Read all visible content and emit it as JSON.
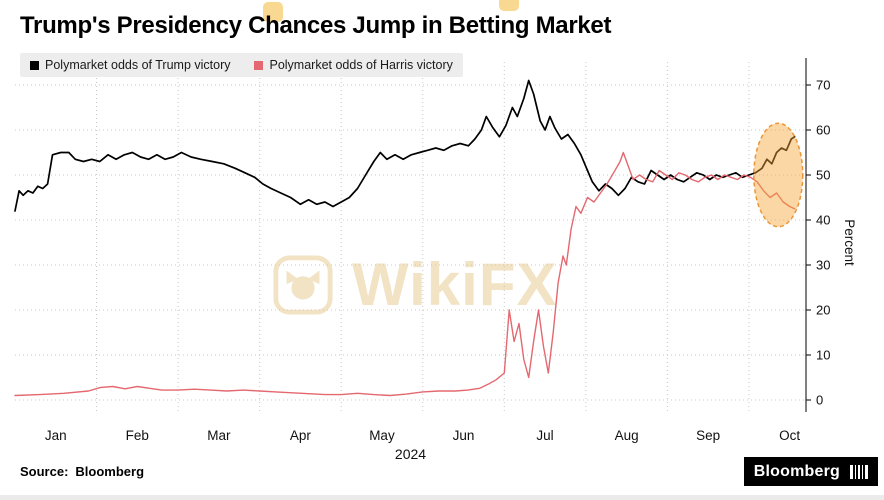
{
  "title": "Trump's Presidency Chances Jump in Betting Market",
  "legend": [
    {
      "label": "Polymarket odds of Trump victory",
      "color": "#000000"
    },
    {
      "label": "Polymarket odds of Harris victory",
      "color": "#e4686f"
    }
  ],
  "watermark": {
    "text": "WikiFX",
    "color": "#f1e3c3"
  },
  "source": {
    "label": "Source:",
    "value": "Bloomberg"
  },
  "brand": {
    "name": "Bloomberg"
  },
  "chart_data": {
    "type": "line",
    "title": "Trump's Presidency Chances Jump in Betting Market",
    "xlabel": "2024",
    "ylabel": "Percent",
    "ylim": [
      -2,
      73
    ],
    "yticks": [
      0,
      10,
      20,
      30,
      40,
      50,
      60,
      70
    ],
    "xticks": [
      "Jan",
      "Feb",
      "Mar",
      "Apr",
      "May",
      "Jun",
      "Jul",
      "Aug",
      "Sep",
      "Oct"
    ],
    "x_axis_note": "x values are months since Jan 1 2024 (0 = Jan 1)",
    "grid": true,
    "legend_position": "top-left",
    "series": [
      {
        "name": "Polymarket odds of Trump victory",
        "color": "#000000",
        "points": [
          [
            0,
            42
          ],
          [
            0.05,
            46.5
          ],
          [
            0.1,
            45.5
          ],
          [
            0.16,
            46.5
          ],
          [
            0.22,
            46
          ],
          [
            0.28,
            47.5
          ],
          [
            0.34,
            47
          ],
          [
            0.4,
            48
          ],
          [
            0.46,
            54.5
          ],
          [
            0.56,
            55
          ],
          [
            0.66,
            55
          ],
          [
            0.74,
            53.5
          ],
          [
            0.84,
            53
          ],
          [
            0.94,
            53.5
          ],
          [
            1.04,
            53
          ],
          [
            1.14,
            54.5
          ],
          [
            1.24,
            53.5
          ],
          [
            1.34,
            54.5
          ],
          [
            1.44,
            55
          ],
          [
            1.54,
            54
          ],
          [
            1.64,
            53.5
          ],
          [
            1.74,
            54.5
          ],
          [
            1.84,
            53.5
          ],
          [
            1.94,
            54
          ],
          [
            2.04,
            55
          ],
          [
            2.16,
            54
          ],
          [
            2.28,
            53.5
          ],
          [
            2.42,
            53
          ],
          [
            2.56,
            52.5
          ],
          [
            2.7,
            51.5
          ],
          [
            2.82,
            50.5
          ],
          [
            2.94,
            49.5
          ],
          [
            3.04,
            48
          ],
          [
            3.14,
            47
          ],
          [
            3.26,
            46
          ],
          [
            3.38,
            45
          ],
          [
            3.5,
            43.5
          ],
          [
            3.6,
            44.5
          ],
          [
            3.7,
            43.5
          ],
          [
            3.8,
            44
          ],
          [
            3.9,
            43
          ],
          [
            4,
            44
          ],
          [
            4.1,
            45
          ],
          [
            4.2,
            47
          ],
          [
            4.3,
            50
          ],
          [
            4.4,
            53
          ],
          [
            4.48,
            55
          ],
          [
            4.56,
            53.5
          ],
          [
            4.66,
            54.5
          ],
          [
            4.76,
            53.5
          ],
          [
            4.86,
            54.5
          ],
          [
            4.96,
            55
          ],
          [
            5.06,
            55.5
          ],
          [
            5.16,
            56
          ],
          [
            5.26,
            55.5
          ],
          [
            5.36,
            56.5
          ],
          [
            5.46,
            57
          ],
          [
            5.56,
            56.5
          ],
          [
            5.64,
            58
          ],
          [
            5.72,
            60
          ],
          [
            5.78,
            63
          ],
          [
            5.86,
            60.5
          ],
          [
            5.94,
            58.5
          ],
          [
            6.02,
            61
          ],
          [
            6.1,
            65
          ],
          [
            6.16,
            63
          ],
          [
            6.24,
            67
          ],
          [
            6.3,
            71
          ],
          [
            6.36,
            68
          ],
          [
            6.44,
            62
          ],
          [
            6.5,
            60
          ],
          [
            6.56,
            63
          ],
          [
            6.62,
            60.5
          ],
          [
            6.7,
            58
          ],
          [
            6.78,
            59
          ],
          [
            6.86,
            57
          ],
          [
            6.94,
            54.5
          ],
          [
            7.02,
            51
          ],
          [
            7.08,
            48.5
          ],
          [
            7.16,
            46.5
          ],
          [
            7.24,
            48
          ],
          [
            7.32,
            47
          ],
          [
            7.4,
            45.5
          ],
          [
            7.48,
            47
          ],
          [
            7.56,
            49.5
          ],
          [
            7.64,
            48.5
          ],
          [
            7.72,
            48
          ],
          [
            7.8,
            51
          ],
          [
            7.88,
            50
          ],
          [
            7.96,
            49
          ],
          [
            8.04,
            50
          ],
          [
            8.12,
            49
          ],
          [
            8.2,
            48.5
          ],
          [
            8.28,
            49.5
          ],
          [
            8.36,
            50.5
          ],
          [
            8.44,
            50
          ],
          [
            8.52,
            49
          ],
          [
            8.6,
            50
          ],
          [
            8.68,
            49.5
          ],
          [
            8.76,
            50
          ],
          [
            8.84,
            50.5
          ],
          [
            8.92,
            49.5
          ],
          [
            9,
            50
          ],
          [
            9.08,
            50.5
          ],
          [
            9.16,
            51.5
          ],
          [
            9.22,
            53.5
          ],
          [
            9.28,
            52.5
          ],
          [
            9.34,
            55
          ],
          [
            9.4,
            56
          ],
          [
            9.46,
            55.5
          ],
          [
            9.52,
            58
          ],
          [
            9.56,
            58.5
          ]
        ]
      },
      {
        "name": "Polymarket odds of Harris victory",
        "color": "#e4686f",
        "points": [
          [
            0,
            1
          ],
          [
            0.3,
            1.2
          ],
          [
            0.6,
            1.5
          ],
          [
            0.9,
            2
          ],
          [
            1.05,
            2.8
          ],
          [
            1.2,
            3
          ],
          [
            1.35,
            2.5
          ],
          [
            1.5,
            3
          ],
          [
            1.65,
            2.6
          ],
          [
            1.8,
            2.2
          ],
          [
            2,
            2.2
          ],
          [
            2.2,
            2.4
          ],
          [
            2.4,
            2.2
          ],
          [
            2.6,
            2
          ],
          [
            2.8,
            2.2
          ],
          [
            3,
            2
          ],
          [
            3.2,
            1.8
          ],
          [
            3.4,
            1.6
          ],
          [
            3.6,
            1.4
          ],
          [
            3.8,
            1.2
          ],
          [
            4,
            1.2
          ],
          [
            4.2,
            1.5
          ],
          [
            4.4,
            1.2
          ],
          [
            4.6,
            1
          ],
          [
            4.8,
            1.3
          ],
          [
            5,
            1.8
          ],
          [
            5.2,
            2
          ],
          [
            5.4,
            2
          ],
          [
            5.55,
            2.2
          ],
          [
            5.7,
            2.6
          ],
          [
            5.8,
            3.5
          ],
          [
            5.9,
            4.5
          ],
          [
            6,
            6
          ],
          [
            6.06,
            20
          ],
          [
            6.12,
            13
          ],
          [
            6.18,
            17
          ],
          [
            6.24,
            9
          ],
          [
            6.3,
            5
          ],
          [
            6.36,
            13
          ],
          [
            6.42,
            20
          ],
          [
            6.48,
            12
          ],
          [
            6.54,
            6
          ],
          [
            6.6,
            15
          ],
          [
            6.66,
            26
          ],
          [
            6.72,
            32
          ],
          [
            6.76,
            30
          ],
          [
            6.82,
            38
          ],
          [
            6.88,
            43
          ],
          [
            6.94,
            41.5
          ],
          [
            7.02,
            45
          ],
          [
            7.1,
            44
          ],
          [
            7.18,
            46
          ],
          [
            7.26,
            48
          ],
          [
            7.34,
            50.5
          ],
          [
            7.42,
            53
          ],
          [
            7.46,
            55
          ],
          [
            7.52,
            52
          ],
          [
            7.58,
            49
          ],
          [
            7.66,
            50
          ],
          [
            7.74,
            49
          ],
          [
            7.82,
            48.5
          ],
          [
            7.9,
            51
          ],
          [
            7.98,
            50
          ],
          [
            8.06,
            49
          ],
          [
            8.14,
            50.5
          ],
          [
            8.22,
            50
          ],
          [
            8.3,
            49
          ],
          [
            8.38,
            48.5
          ],
          [
            8.46,
            49.5
          ],
          [
            8.54,
            50
          ],
          [
            8.62,
            49
          ],
          [
            8.7,
            50
          ],
          [
            8.78,
            49.5
          ],
          [
            8.86,
            49
          ],
          [
            8.94,
            50
          ],
          [
            9.02,
            49.5
          ],
          [
            9.1,
            48.5
          ],
          [
            9.18,
            46.5
          ],
          [
            9.26,
            45
          ],
          [
            9.34,
            46
          ],
          [
            9.42,
            44
          ],
          [
            9.5,
            43
          ],
          [
            9.56,
            42.5
          ]
        ]
      }
    ],
    "highlight_ellipse": {
      "x_center": 9.36,
      "y_center": 50,
      "x_radius": 0.3,
      "y_radius": 11.5,
      "fill_color": "#f6a63a",
      "stroke_color": "#e8973a",
      "note": "highlights the October jump in Trump odds"
    }
  }
}
